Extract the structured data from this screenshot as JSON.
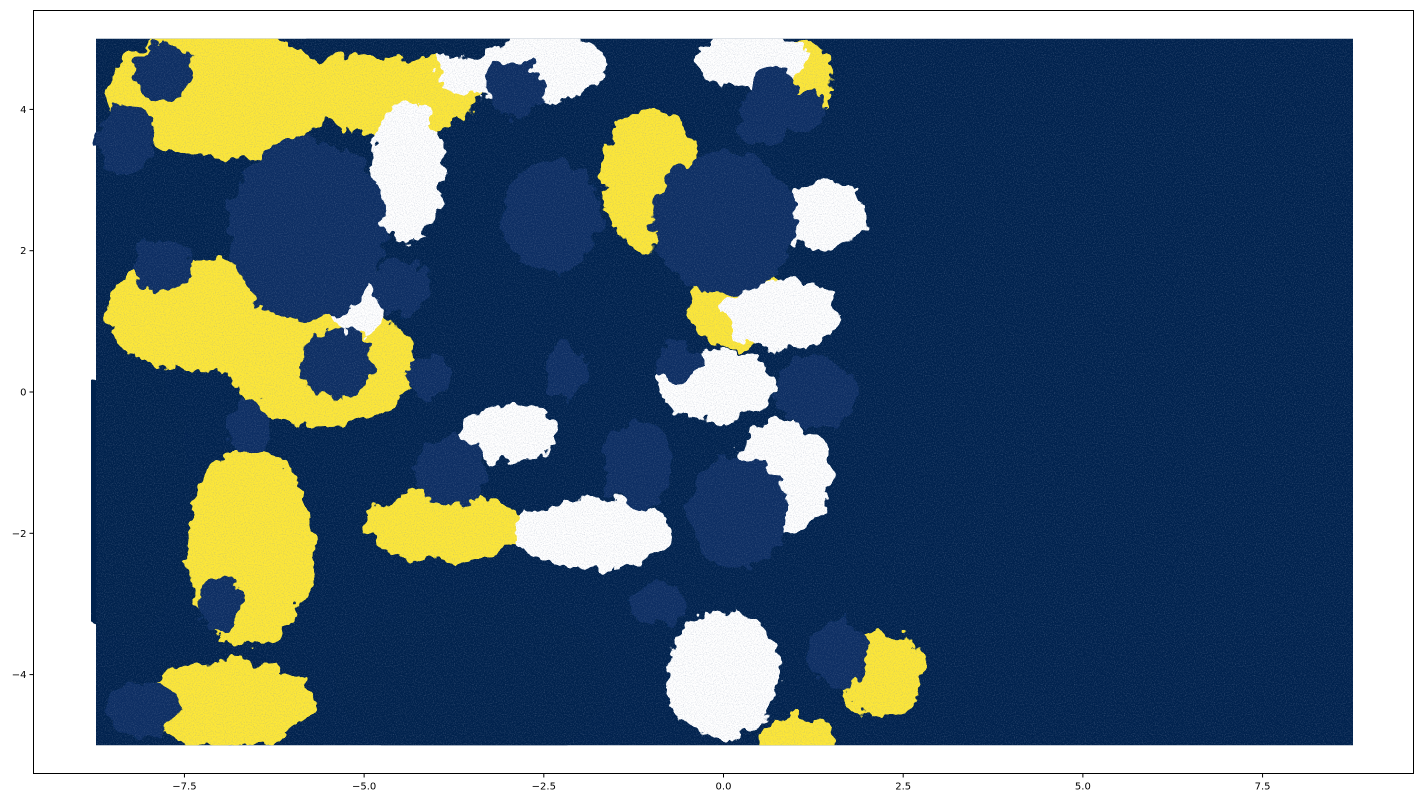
{
  "chart_data": {
    "type": "heatmap",
    "title": "",
    "xlabel": "",
    "ylabel": "",
    "xlim": [
      -9.6,
      9.6
    ],
    "ylim": [
      -5.4,
      5.4
    ],
    "data_extent": {
      "x": [
        -8.8,
        8.8
      ],
      "y": [
        -5.0,
        5.0
      ]
    },
    "x_ticks": [
      {
        "value": -7.5,
        "label": "−7.5"
      },
      {
        "value": -5.0,
        "label": "−5.0"
      },
      {
        "value": -2.5,
        "label": "−2.5"
      },
      {
        "value": 0.0,
        "label": "0.0"
      },
      {
        "value": 2.5,
        "label": "2.5"
      },
      {
        "value": 5.0,
        "label": "5.0"
      },
      {
        "value": 7.5,
        "label": "7.5"
      }
    ],
    "y_ticks": [
      {
        "value": -4,
        "label": "−4"
      },
      {
        "value": -2,
        "label": "−2"
      },
      {
        "value": 0,
        "label": "0"
      },
      {
        "value": 2,
        "label": "2"
      },
      {
        "value": 4,
        "label": "4"
      }
    ],
    "colors": {
      "background_region": "#00224e",
      "hole": "#0a2f63",
      "boundary": "#fde737",
      "filament": "#ffffff",
      "texture": "#3b4a6b"
    },
    "fractal_regions": {
      "yellow_zones": [
        {
          "cx": -7.0,
          "cy": 4.2,
          "rx": 1.6,
          "ry": 0.9
        },
        {
          "cx": -4.6,
          "cy": 4.3,
          "rx": 1.2,
          "ry": 0.7
        },
        {
          "cx": -7.3,
          "cy": 1.1,
          "rx": 1.3,
          "ry": 0.8
        },
        {
          "cx": -5.6,
          "cy": 0.4,
          "rx": 1.3,
          "ry": 0.9
        },
        {
          "cx": -6.6,
          "cy": -2.2,
          "rx": 0.9,
          "ry": 1.4
        },
        {
          "cx": -6.9,
          "cy": -4.4,
          "rx": 1.2,
          "ry": 0.6
        },
        {
          "cx": -3.9,
          "cy": -1.9,
          "rx": 1.1,
          "ry": 0.5
        },
        {
          "cx": -1.0,
          "cy": 3.0,
          "rx": 0.7,
          "ry": 1.0
        },
        {
          "cx": 0.2,
          "cy": 1.2,
          "rx": 0.7,
          "ry": 0.6
        },
        {
          "cx": 2.2,
          "cy": -4.0,
          "rx": 0.6,
          "ry": 0.6
        },
        {
          "cx": 1.1,
          "cy": 4.4,
          "rx": 0.4,
          "ry": 0.6
        },
        {
          "cx": 1.0,
          "cy": -4.9,
          "rx": 0.5,
          "ry": 0.3
        }
      ],
      "white_zones": [
        {
          "cx": -2.8,
          "cy": 4.6,
          "rx": 1.2,
          "ry": 0.5
        },
        {
          "cx": -4.4,
          "cy": 3.1,
          "rx": 0.5,
          "ry": 1.0
        },
        {
          "cx": 0.4,
          "cy": 4.7,
          "rx": 0.8,
          "ry": 0.4
        },
        {
          "cx": 1.4,
          "cy": 2.5,
          "rx": 0.6,
          "ry": 0.5
        },
        {
          "cx": 0.8,
          "cy": 1.1,
          "rx": 0.8,
          "ry": 0.5
        },
        {
          "cx": -0.1,
          "cy": 0.1,
          "rx": 0.8,
          "ry": 0.5
        },
        {
          "cx": -3.0,
          "cy": -0.6,
          "rx": 0.7,
          "ry": 0.4
        },
        {
          "cx": -1.8,
          "cy": -2.0,
          "rx": 1.1,
          "ry": 0.5
        },
        {
          "cx": 0.8,
          "cy": -1.2,
          "rx": 0.7,
          "ry": 0.8
        },
        {
          "cx": 0.0,
          "cy": -4.0,
          "rx": 0.8,
          "ry": 0.9
        },
        {
          "cx": -5.1,
          "cy": 1.2,
          "rx": 0.4,
          "ry": 0.4
        }
      ],
      "holes": [
        {
          "cx": -5.8,
          "cy": 2.3,
          "rx": 1.1,
          "ry": 1.3
        },
        {
          "cx": -2.4,
          "cy": 2.5,
          "rx": 0.7,
          "ry": 0.8
        },
        {
          "cx": 0.0,
          "cy": 2.4,
          "rx": 1.0,
          "ry": 1.0
        },
        {
          "cx": -4.5,
          "cy": 1.5,
          "rx": 0.4,
          "ry": 0.4
        },
        {
          "cx": -5.4,
          "cy": 0.4,
          "rx": 0.5,
          "ry": 0.5
        },
        {
          "cx": -1.2,
          "cy": -1.0,
          "rx": 0.5,
          "ry": 0.6
        },
        {
          "cx": -3.8,
          "cy": -1.1,
          "rx": 0.5,
          "ry": 0.5
        },
        {
          "cx": -2.2,
          "cy": 0.3,
          "rx": 0.3,
          "ry": 0.4
        },
        {
          "cx": 0.2,
          "cy": -1.7,
          "rx": 0.7,
          "ry": 0.8
        },
        {
          "cx": 1.3,
          "cy": 0.0,
          "rx": 0.6,
          "ry": 0.5
        },
        {
          "cx": -2.9,
          "cy": 4.3,
          "rx": 0.4,
          "ry": 0.4
        },
        {
          "cx": 0.6,
          "cy": 3.9,
          "rx": 0.4,
          "ry": 0.4
        },
        {
          "cx": -7.8,
          "cy": 4.5,
          "rx": 0.4,
          "ry": 0.4
        },
        {
          "cx": -8.3,
          "cy": 3.6,
          "rx": 0.4,
          "ry": 0.5
        },
        {
          "cx": -7.8,
          "cy": 1.8,
          "rx": 0.4,
          "ry": 0.4
        },
        {
          "cx": -8.1,
          "cy": -4.5,
          "rx": 0.5,
          "ry": 0.4
        },
        {
          "cx": -6.6,
          "cy": -0.5,
          "rx": 0.3,
          "ry": 0.4
        },
        {
          "cx": -7.0,
          "cy": -3.0,
          "rx": 0.3,
          "ry": 0.4
        },
        {
          "cx": 1.1,
          "cy": 4.0,
          "rx": 0.3,
          "ry": 0.3
        },
        {
          "cx": 1.6,
          "cy": -3.7,
          "rx": 0.4,
          "ry": 0.5
        },
        {
          "cx": -0.9,
          "cy": -3.0,
          "rx": 0.4,
          "ry": 0.3
        },
        {
          "cx": 0.7,
          "cy": 4.3,
          "rx": 0.3,
          "ry": 0.3
        },
        {
          "cx": -4.1,
          "cy": 0.2,
          "rx": 0.3,
          "ry": 0.3
        },
        {
          "cx": -0.6,
          "cy": 0.4,
          "rx": 0.3,
          "ry": 0.3
        }
      ],
      "large_dark_areas": [
        {
          "cx": -3.5,
          "cy": -4.1,
          "rx": 1.9,
          "ry": 1.2
        },
        {
          "cx": -8.3,
          "cy": -1.5,
          "rx": 0.9,
          "ry": 2.0
        },
        {
          "cx": -4.4,
          "cy": 5.0,
          "rx": 1.4,
          "ry": 0.3
        }
      ]
    }
  }
}
